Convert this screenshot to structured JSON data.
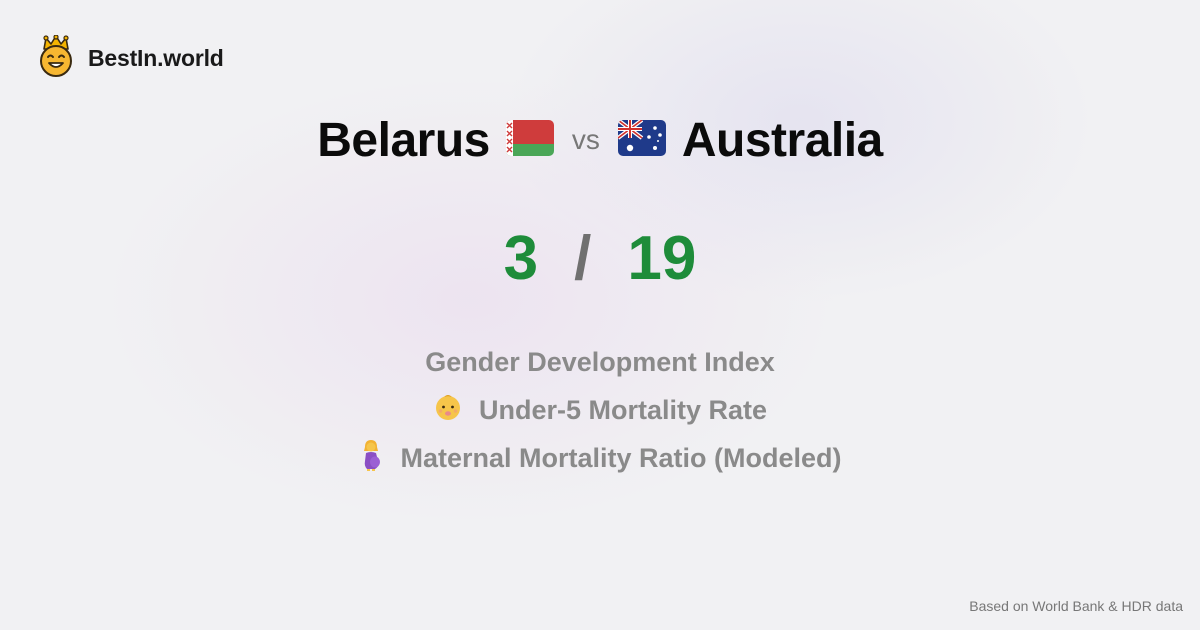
{
  "brand": {
    "name": "BestIn.world",
    "logo_icon": "crown-smiley-icon"
  },
  "comparison": {
    "left_country": "Belarus",
    "left_flag_icon": "belarus-flag-icon",
    "separator": "vs",
    "right_country": "Australia",
    "right_flag_icon": "australia-flag-icon"
  },
  "scores": {
    "left": "3",
    "divider": "/",
    "right": "19",
    "color": "#1e8c3a"
  },
  "metrics": [
    {
      "label": "Gender Development Index",
      "icon": ""
    },
    {
      "label": "Under-5 Mortality Rate",
      "icon": "baby-icon"
    },
    {
      "label": "Maternal Mortality Ratio (Modeled)",
      "icon": "pregnant-woman-icon"
    }
  ],
  "footer": {
    "source": "Based on World Bank & HDR data"
  }
}
